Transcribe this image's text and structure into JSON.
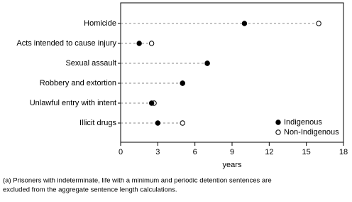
{
  "chart_data": {
    "type": "dot",
    "categories": [
      "Homicide",
      "Acts intended to cause injury",
      "Sexual assault",
      "Robbery and extortion",
      "Unlawful entry with intent",
      "Illicit drugs"
    ],
    "series": [
      {
        "name": "Indigenous",
        "color": "#000000",
        "values": [
          10,
          1.5,
          7,
          5,
          2.5,
          3
        ]
      },
      {
        "name": "Non-Indigenous",
        "color": "#ffffff",
        "values": [
          16,
          2.5,
          7,
          5,
          2.7,
          5
        ]
      }
    ],
    "xlim": [
      0,
      18
    ],
    "xticks": [
      0,
      3,
      6,
      9,
      12,
      15,
      18
    ],
    "xlabel": "years",
    "legend": "bottom-right",
    "footnote": [
      "(a) Prisoners with indeterminate, life with a minimum and periodic detention sentences are",
      "excluded from the aggregate sentence length calculations."
    ]
  }
}
